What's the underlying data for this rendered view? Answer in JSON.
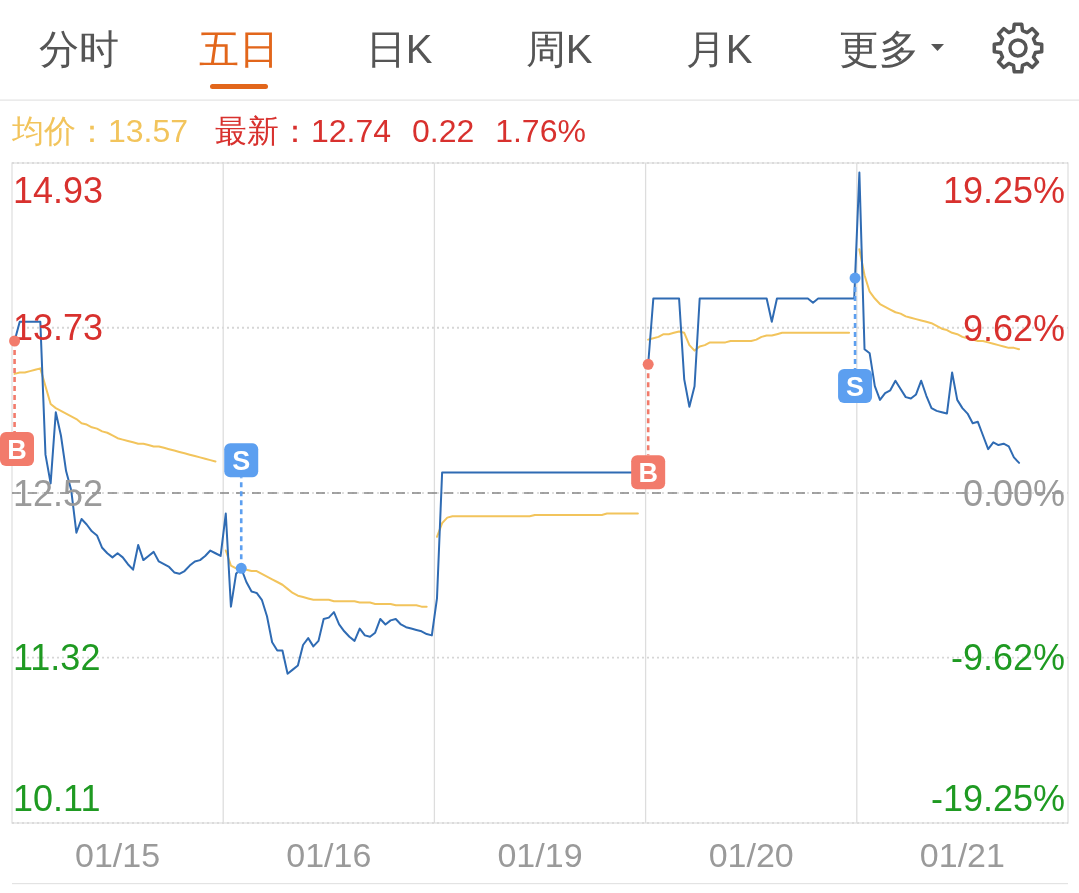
{
  "chart_data": {
    "type": "line",
    "title": "五日",
    "subtitle": "最新：12.74 0.22 1.76%",
    "legend": "top left",
    "annotations": [
      "分时",
      "日K",
      "周K",
      "月K",
      "更多",
      {
        "text": "B",
        "y": 13.63
      },
      {
        "text": "S",
        "y": 11.97
      },
      {
        "text": "B",
        "y": 13.46
      },
      {
        "text": "S",
        "y": 14.09
      }
    ],
    "categories": [
      null,
      null,
      null,
      null,
      null,
      null,
      null,
      null,
      null,
      null,
      null,
      null,
      null,
      null,
      null,
      null,
      null,
      null,
      null,
      null,
      "01/15",
      null,
      null,
      null,
      null,
      null,
      null,
      null,
      null,
      null,
      null,
      null,
      null,
      null,
      null,
      null,
      null,
      null,
      null,
      null,
      null,
      null,
      null,
      null,
      null,
      null,
      null,
      null,
      null,
      null,
      null,
      null,
      null,
      null,
      null,
      null,
      null,
      null,
      null,
      null,
      null,
      "01/16",
      null,
      null,
      null,
      null,
      null,
      null,
      null,
      null,
      null,
      null,
      null,
      null,
      null,
      null,
      null,
      null,
      null,
      null,
      null,
      null,
      null,
      null,
      null,
      null,
      null,
      null,
      null,
      null,
      null,
      null,
      null,
      null,
      null,
      null,
      null,
      null,
      null,
      null,
      null,
      null,
      "01/19",
      null,
      null,
      null,
      null,
      null,
      null,
      null,
      null,
      null,
      null,
      null,
      null,
      null,
      null,
      null,
      null,
      null,
      null,
      null,
      null,
      null,
      null,
      null,
      null,
      null,
      null,
      null,
      null,
      null,
      null,
      null,
      null,
      null,
      null,
      null,
      null,
      null,
      null,
      null,
      null,
      "01/20",
      null,
      null,
      null,
      null,
      null,
      null,
      null,
      null,
      null,
      null,
      null,
      null,
      null,
      null,
      null,
      null,
      null,
      null,
      null,
      null,
      null,
      null,
      null,
      null,
      null,
      null,
      null,
      null,
      null,
      null,
      null,
      null,
      null,
      null,
      null,
      null,
      null,
      null,
      null,
      null,
      "01/21",
      null,
      null,
      null,
      null,
      null,
      null,
      null,
      null,
      null,
      null,
      null,
      null,
      null,
      null,
      null,
      null,
      null,
      null,
      null,
      null
    ],
    "ylim": [
      10.11,
      14.93
    ],
    "yticks": [
      14.93,
      13.73,
      12.52,
      11.32,
      10.11
    ],
    "y2lim": [
      -19.25,
      19.25
    ],
    "y2ticks": [
      {
        "value": 19.25,
        "label": "19.25%"
      },
      {
        "value": 9.62,
        "label": "9.62%"
      },
      {
        "value": 0,
        "label": "0.00%"
      },
      {
        "value": -9.62,
        "label": "-9.62%"
      },
      {
        "value": -19.25,
        "label": "-19.25%"
      }
    ],
    "grid": true,
    "ref_lines": [
      {
        "axis": "y",
        "value": 12.52,
        "color": "#888888",
        "line_style": "dashed"
      }
    ],
    "series": [
      {
        "color": "#2f6bb3",
        "values": [
          13.63,
          13.77,
          13.77,
          13.77,
          13.77,
          13.77,
          12.8,
          12.59,
          13.11,
          12.94,
          12.68,
          12.54,
          12.23,
          12.33,
          12.29,
          12.24,
          12.21,
          12.12,
          12.08,
          12.05,
          12.08,
          12.05,
          12.0,
          11.96,
          12.14,
          12.03,
          12.06,
          12.09,
          12.02,
          12.0,
          11.98,
          11.94,
          11.93,
          11.95,
          11.99,
          12.02,
          12.03,
          12.06,
          12.1,
          12.08,
          12.06,
          12.37,
          11.69,
          11.93,
          11.97,
          11.87,
          11.8,
          11.79,
          11.74,
          11.62,
          11.43,
          11.37,
          11.37,
          11.2,
          11.23,
          11.26,
          11.41,
          11.46,
          11.4,
          11.44,
          11.6,
          11.61,
          11.65,
          11.56,
          11.51,
          11.47,
          11.44,
          11.53,
          11.48,
          11.47,
          11.5,
          11.6,
          11.56,
          11.59,
          11.6,
          11.56,
          11.54,
          11.53,
          11.52,
          11.51,
          11.49,
          11.48,
          11.75,
          12.67,
          12.67,
          12.67,
          12.67,
          12.67,
          12.67,
          12.67,
          12.67,
          12.67,
          12.67,
          12.67,
          12.67,
          12.67,
          12.67,
          12.67,
          12.67,
          12.67,
          12.67,
          12.67,
          12.67,
          12.67,
          12.67,
          12.67,
          12.67,
          12.67,
          12.67,
          12.67,
          12.67,
          12.67,
          12.67,
          12.67,
          12.67,
          12.67,
          12.67,
          12.67,
          12.67,
          12.67,
          12.67,
          null,
          null,
          13.46,
          13.94,
          13.94,
          13.94,
          13.94,
          13.94,
          13.94,
          13.35,
          13.15,
          13.3,
          13.94,
          13.94,
          13.94,
          13.94,
          13.94,
          13.94,
          13.94,
          13.94,
          13.94,
          13.94,
          13.94,
          13.94,
          13.94,
          13.94,
          13.77,
          13.94,
          13.94,
          13.94,
          13.94,
          13.94,
          13.94,
          13.94,
          13.91,
          13.94,
          13.94,
          13.94,
          13.94,
          13.94,
          13.94,
          13.94,
          13.94,
          14.86,
          13.57,
          13.54,
          13.3,
          13.2,
          13.25,
          13.27,
          13.34,
          13.28,
          13.22,
          13.21,
          13.24,
          13.34,
          13.23,
          13.14,
          13.12,
          13.11,
          13.1,
          13.4,
          13.2,
          13.14,
          13.1,
          13.03,
          13.04,
          12.94,
          12.84,
          12.89,
          12.87,
          12.88,
          12.86,
          12.78,
          12.74,
          null,
          null,
          null,
          null,
          null,
          null,
          null,
          null,
          null
        ]
      },
      {
        "name": "均价：13.57",
        "color": "#f2c45c",
        "values": [
          13.39,
          13.4,
          13.4,
          13.41,
          13.42,
          13.43,
          13.3,
          13.17,
          13.14,
          13.12,
          13.1,
          13.08,
          13.06,
          13.03,
          13.02,
          13.0,
          12.99,
          12.97,
          12.96,
          12.94,
          12.92,
          12.91,
          12.9,
          12.89,
          12.88,
          12.88,
          12.87,
          12.86,
          12.86,
          12.85,
          12.84,
          12.83,
          12.82,
          12.81,
          12.8,
          12.79,
          12.78,
          12.77,
          12.76,
          12.75,
          null,
          12.1,
          11.99,
          11.97,
          11.96,
          11.96,
          11.95,
          11.95,
          11.93,
          11.91,
          11.89,
          11.87,
          11.85,
          11.82,
          11.79,
          11.77,
          11.76,
          11.75,
          11.74,
          11.74,
          11.74,
          11.74,
          11.73,
          11.73,
          11.73,
          11.73,
          11.73,
          11.72,
          11.72,
          11.72,
          11.71,
          11.71,
          11.71,
          11.71,
          11.7,
          11.7,
          11.7,
          11.7,
          11.7,
          11.69,
          11.69,
          null,
          12.2,
          12.3,
          12.34,
          12.35,
          12.35,
          12.35,
          12.35,
          12.35,
          12.35,
          12.35,
          12.35,
          12.35,
          12.35,
          12.35,
          12.35,
          12.35,
          12.35,
          12.35,
          12.35,
          12.36,
          12.36,
          12.36,
          12.36,
          12.36,
          12.36,
          12.36,
          12.36,
          12.36,
          12.36,
          12.36,
          12.36,
          12.36,
          12.36,
          12.37,
          12.37,
          12.37,
          12.37,
          12.37,
          12.37,
          12.37,
          null,
          13.64,
          13.65,
          13.66,
          13.68,
          13.68,
          13.69,
          13.7,
          13.69,
          13.6,
          13.56,
          13.59,
          13.6,
          13.62,
          13.62,
          13.62,
          13.62,
          13.63,
          13.63,
          13.63,
          13.63,
          13.63,
          13.64,
          13.66,
          13.67,
          13.67,
          13.68,
          13.69,
          13.69,
          13.69,
          13.69,
          13.69,
          13.69,
          13.69,
          13.69,
          13.69,
          13.69,
          13.69,
          13.69,
          13.69,
          13.69,
          null,
          14.3,
          14.11,
          13.99,
          13.94,
          13.9,
          13.88,
          13.86,
          13.84,
          13.83,
          13.81,
          13.8,
          13.79,
          13.78,
          13.77,
          13.76,
          13.74,
          13.72,
          13.71,
          13.69,
          13.68,
          13.66,
          13.65,
          13.64,
          13.63,
          13.63,
          13.62,
          13.61,
          13.6,
          13.59,
          13.58,
          13.58,
          13.57,
          null,
          null,
          null,
          null,
          null,
          null,
          null,
          null,
          null
        ]
      }
    ]
  }
}
